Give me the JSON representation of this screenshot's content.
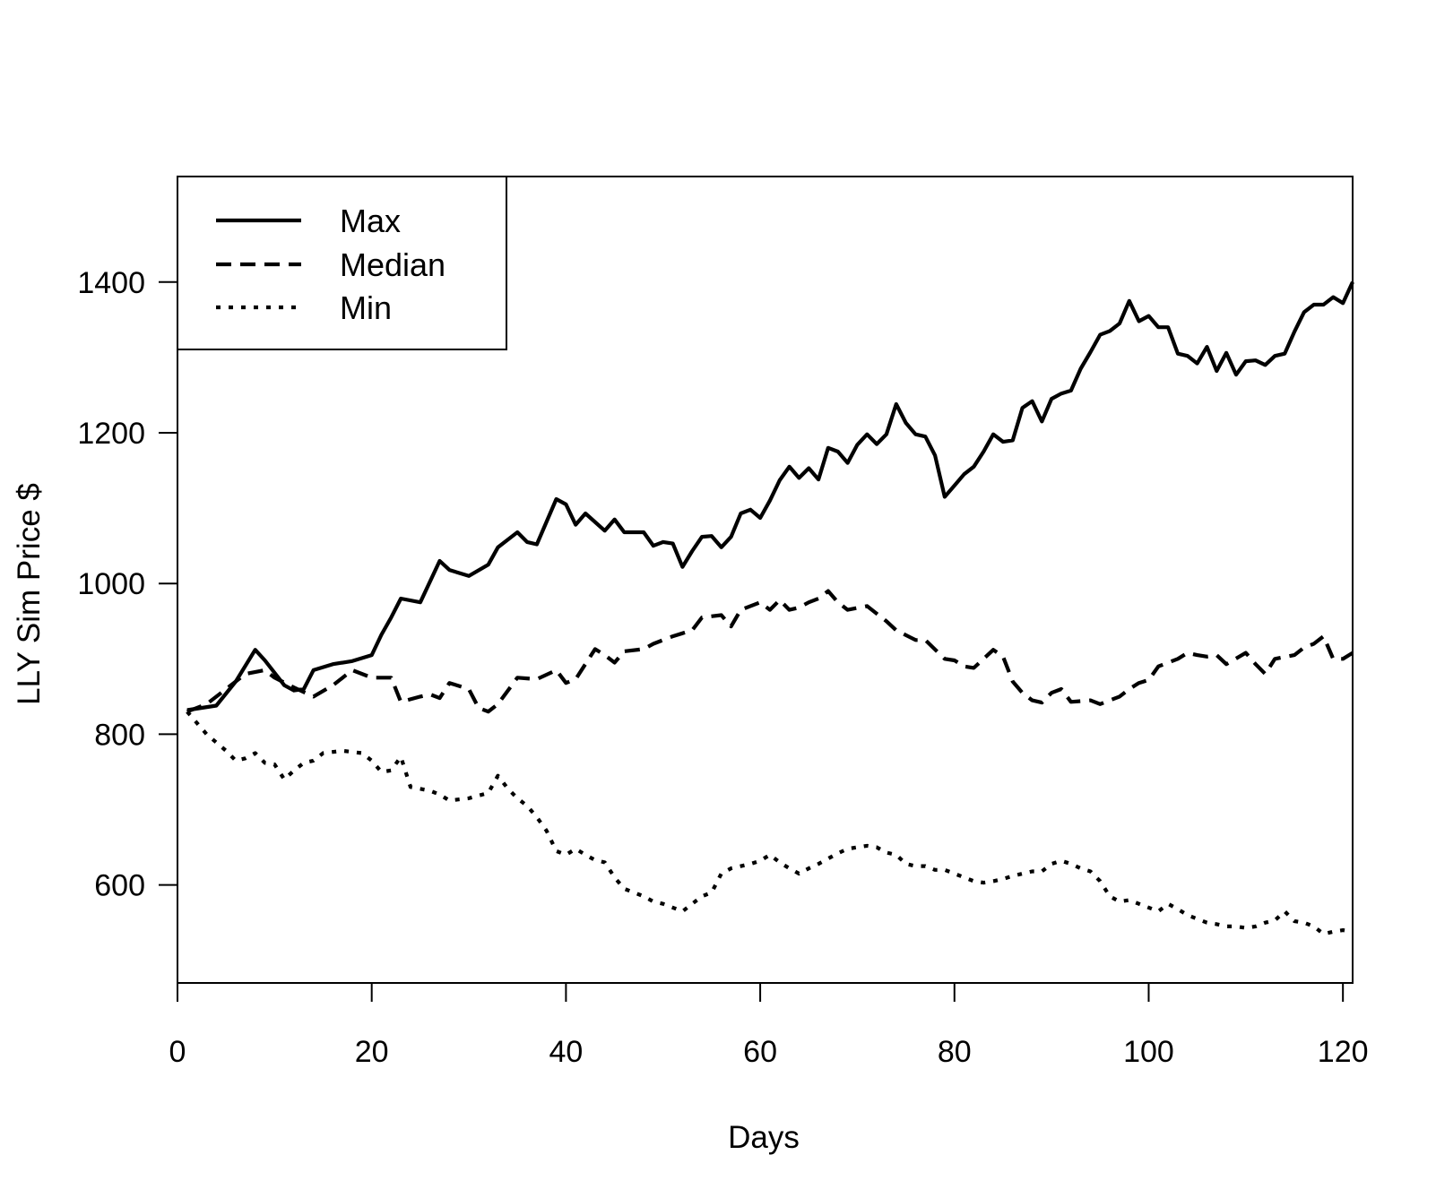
{
  "chart_data": {
    "type": "line",
    "title": "",
    "xlabel": "Days",
    "ylabel": "LLY Sim Price $",
    "xlim": [
      0,
      121
    ],
    "ylim": [
      470,
      1540
    ],
    "xticks": [
      0,
      20,
      40,
      60,
      80,
      100,
      120
    ],
    "yticks": [
      600,
      800,
      1000,
      1200,
      1400
    ],
    "grid": false,
    "legend_position": "top-left",
    "series": [
      {
        "name": "Max",
        "line_style": "solid",
        "color": "#000000",
        "points": [
          [
            1,
            832
          ],
          [
            4,
            838
          ],
          [
            6,
            870
          ],
          [
            8,
            912
          ],
          [
            9,
            898
          ],
          [
            11,
            865
          ],
          [
            12,
            858
          ],
          [
            13,
            860
          ],
          [
            14,
            885
          ],
          [
            16,
            893
          ],
          [
            18,
            897
          ],
          [
            20,
            905
          ],
          [
            21,
            932
          ],
          [
            22,
            955
          ],
          [
            23,
            980
          ],
          [
            25,
            975
          ],
          [
            27,
            1030
          ],
          [
            28,
            1018
          ],
          [
            30,
            1010
          ],
          [
            32,
            1025
          ],
          [
            33,
            1048
          ],
          [
            35,
            1068
          ],
          [
            36,
            1055
          ],
          [
            37,
            1052
          ],
          [
            39,
            1112
          ],
          [
            40,
            1105
          ],
          [
            41,
            1078
          ],
          [
            42,
            1093
          ],
          [
            44,
            1070
          ],
          [
            45,
            1085
          ],
          [
            46,
            1068
          ],
          [
            48,
            1068
          ],
          [
            49,
            1050
          ],
          [
            50,
            1055
          ],
          [
            51,
            1053
          ],
          [
            52,
            1022
          ],
          [
            53,
            1043
          ],
          [
            54,
            1062
          ],
          [
            55,
            1063
          ],
          [
            56,
            1048
          ],
          [
            57,
            1062
          ],
          [
            58,
            1093
          ],
          [
            59,
            1098
          ],
          [
            60,
            1087
          ],
          [
            61,
            1110
          ],
          [
            62,
            1137
          ],
          [
            63,
            1155
          ],
          [
            64,
            1140
          ],
          [
            65,
            1153
          ],
          [
            66,
            1138
          ],
          [
            67,
            1180
          ],
          [
            68,
            1175
          ],
          [
            69,
            1160
          ],
          [
            70,
            1184
          ],
          [
            71,
            1198
          ],
          [
            72,
            1185
          ],
          [
            73,
            1198
          ],
          [
            74,
            1238
          ],
          [
            75,
            1213
          ],
          [
            76,
            1198
          ],
          [
            77,
            1195
          ],
          [
            78,
            1170
          ],
          [
            79,
            1115
          ],
          [
            80,
            1130
          ],
          [
            81,
            1145
          ],
          [
            82,
            1155
          ],
          [
            83,
            1175
          ],
          [
            84,
            1198
          ],
          [
            85,
            1188
          ],
          [
            86,
            1190
          ],
          [
            87,
            1233
          ],
          [
            88,
            1242
          ],
          [
            89,
            1215
          ],
          [
            90,
            1245
          ],
          [
            91,
            1252
          ],
          [
            92,
            1256
          ],
          [
            93,
            1285
          ],
          [
            94,
            1307
          ],
          [
            95,
            1330
          ],
          [
            96,
            1335
          ],
          [
            97,
            1345
          ],
          [
            98,
            1375
          ],
          [
            99,
            1348
          ],
          [
            100,
            1355
          ],
          [
            101,
            1340
          ],
          [
            102,
            1340
          ],
          [
            103,
            1305
          ],
          [
            104,
            1302
          ],
          [
            105,
            1292
          ],
          [
            106,
            1314
          ],
          [
            107,
            1282
          ],
          [
            108,
            1306
          ],
          [
            109,
            1277
          ],
          [
            110,
            1295
          ],
          [
            111,
            1296
          ],
          [
            112,
            1290
          ],
          [
            113,
            1302
          ],
          [
            114,
            1305
          ],
          [
            115,
            1334
          ],
          [
            116,
            1360
          ],
          [
            117,
            1370
          ],
          [
            118,
            1370
          ],
          [
            119,
            1380
          ],
          [
            120,
            1372
          ],
          [
            121,
            1400
          ]
        ]
      },
      {
        "name": "Median",
        "line_style": "dashed",
        "color": "#000000",
        "points": [
          [
            1,
            830
          ],
          [
            3,
            840
          ],
          [
            5,
            860
          ],
          [
            7,
            880
          ],
          [
            9,
            885
          ],
          [
            10,
            875
          ],
          [
            12,
            862
          ],
          [
            14,
            850
          ],
          [
            16,
            865
          ],
          [
            18,
            885
          ],
          [
            20,
            875
          ],
          [
            22,
            875
          ],
          [
            23,
            843
          ],
          [
            25,
            850
          ],
          [
            26,
            853
          ],
          [
            27,
            848
          ],
          [
            28,
            868
          ],
          [
            30,
            860
          ],
          [
            31,
            835
          ],
          [
            32,
            830
          ],
          [
            33,
            840
          ],
          [
            35,
            875
          ],
          [
            37,
            873
          ],
          [
            39,
            885
          ],
          [
            40,
            868
          ],
          [
            41,
            873
          ],
          [
            43,
            913
          ],
          [
            44,
            905
          ],
          [
            45,
            895
          ],
          [
            46,
            910
          ],
          [
            48,
            913
          ],
          [
            49,
            920
          ],
          [
            51,
            930
          ],
          [
            53,
            938
          ],
          [
            54,
            955
          ],
          [
            56,
            958
          ],
          [
            57,
            943
          ],
          [
            58,
            965
          ],
          [
            60,
            975
          ],
          [
            61,
            965
          ],
          [
            62,
            978
          ],
          [
            63,
            965
          ],
          [
            64,
            968
          ],
          [
            65,
            975
          ],
          [
            66,
            980
          ],
          [
            67,
            990
          ],
          [
            68,
            975
          ],
          [
            69,
            965
          ],
          [
            71,
            970
          ],
          [
            72,
            960
          ],
          [
            73,
            950
          ],
          [
            74,
            938
          ],
          [
            76,
            925
          ],
          [
            77,
            925
          ],
          [
            79,
            900
          ],
          [
            80,
            898
          ],
          [
            81,
            890
          ],
          [
            82,
            888
          ],
          [
            84,
            912
          ],
          [
            85,
            903
          ],
          [
            86,
            870
          ],
          [
            87,
            855
          ],
          [
            88,
            845
          ],
          [
            89,
            842
          ],
          [
            90,
            855
          ],
          [
            91,
            860
          ],
          [
            92,
            843
          ],
          [
            94,
            845
          ],
          [
            95,
            840
          ],
          [
            96,
            845
          ],
          [
            97,
            850
          ],
          [
            98,
            860
          ],
          [
            99,
            868
          ],
          [
            100,
            872
          ],
          [
            101,
            890
          ],
          [
            102,
            895
          ],
          [
            103,
            900
          ],
          [
            104,
            908
          ],
          [
            105,
            905
          ],
          [
            106,
            903
          ],
          [
            107,
            905
          ],
          [
            108,
            893
          ],
          [
            110,
            908
          ],
          [
            111,
            893
          ],
          [
            112,
            880
          ],
          [
            113,
            900
          ],
          [
            115,
            905
          ],
          [
            116,
            915
          ],
          [
            117,
            920
          ],
          [
            118,
            930
          ],
          [
            119,
            900
          ],
          [
            120,
            900
          ],
          [
            121,
            908
          ]
        ]
      },
      {
        "name": "Min",
        "line_style": "dotted",
        "color": "#000000",
        "points": [
          [
            1,
            830
          ],
          [
            3,
            800
          ],
          [
            5,
            778
          ],
          [
            6,
            765
          ],
          [
            7,
            768
          ],
          [
            8,
            775
          ],
          [
            9,
            762
          ],
          [
            10,
            760
          ],
          [
            11,
            740
          ],
          [
            12,
            752
          ],
          [
            13,
            762
          ],
          [
            14,
            765
          ],
          [
            15,
            775
          ],
          [
            17,
            778
          ],
          [
            19,
            775
          ],
          [
            20,
            765
          ],
          [
            21,
            750
          ],
          [
            22,
            752
          ],
          [
            23,
            770
          ],
          [
            24,
            730
          ],
          [
            26,
            725
          ],
          [
            27,
            720
          ],
          [
            28,
            712
          ],
          [
            30,
            715
          ],
          [
            32,
            722
          ],
          [
            33,
            745
          ],
          [
            34,
            728
          ],
          [
            35,
            715
          ],
          [
            36,
            705
          ],
          [
            37,
            690
          ],
          [
            38,
            672
          ],
          [
            39,
            645
          ],
          [
            40,
            640
          ],
          [
            41,
            648
          ],
          [
            42,
            640
          ],
          [
            43,
            633
          ],
          [
            44,
            630
          ],
          [
            45,
            610
          ],
          [
            46,
            595
          ],
          [
            47,
            590
          ],
          [
            48,
            585
          ],
          [
            49,
            578
          ],
          [
            50,
            575
          ],
          [
            51,
            570
          ],
          [
            52,
            565
          ],
          [
            53,
            575
          ],
          [
            54,
            585
          ],
          [
            55,
            590
          ],
          [
            56,
            615
          ],
          [
            57,
            622
          ],
          [
            59,
            628
          ],
          [
            60,
            632
          ],
          [
            61,
            640
          ],
          [
            62,
            630
          ],
          [
            63,
            622
          ],
          [
            64,
            615
          ],
          [
            65,
            622
          ],
          [
            66,
            628
          ],
          [
            67,
            635
          ],
          [
            68,
            642
          ],
          [
            69,
            648
          ],
          [
            70,
            650
          ],
          [
            71,
            652
          ],
          [
            72,
            650
          ],
          [
            73,
            643
          ],
          [
            74,
            640
          ],
          [
            75,
            628
          ],
          [
            76,
            625
          ],
          [
            77,
            625
          ],
          [
            78,
            620
          ],
          [
            79,
            620
          ],
          [
            80,
            615
          ],
          [
            81,
            610
          ],
          [
            82,
            605
          ],
          [
            83,
            603
          ],
          [
            84,
            605
          ],
          [
            85,
            608
          ],
          [
            86,
            612
          ],
          [
            87,
            615
          ],
          [
            88,
            618
          ],
          [
            89,
            618
          ],
          [
            90,
            628
          ],
          [
            91,
            632
          ],
          [
            92,
            628
          ],
          [
            93,
            622
          ],
          [
            94,
            618
          ],
          [
            95,
            605
          ],
          [
            96,
            585
          ],
          [
            97,
            578
          ],
          [
            98,
            580
          ],
          [
            99,
            575
          ],
          [
            100,
            570
          ],
          [
            101,
            565
          ],
          [
            102,
            575
          ],
          [
            103,
            568
          ],
          [
            104,
            560
          ],
          [
            105,
            555
          ],
          [
            106,
            550
          ],
          [
            107,
            548
          ],
          [
            108,
            545
          ],
          [
            109,
            545
          ],
          [
            110,
            543
          ],
          [
            111,
            545
          ],
          [
            112,
            550
          ],
          [
            113,
            553
          ],
          [
            114,
            565
          ],
          [
            115,
            552
          ],
          [
            116,
            550
          ],
          [
            117,
            545
          ],
          [
            118,
            535
          ],
          [
            119,
            538
          ],
          [
            120,
            540
          ],
          [
            121,
            538
          ]
        ]
      }
    ]
  }
}
